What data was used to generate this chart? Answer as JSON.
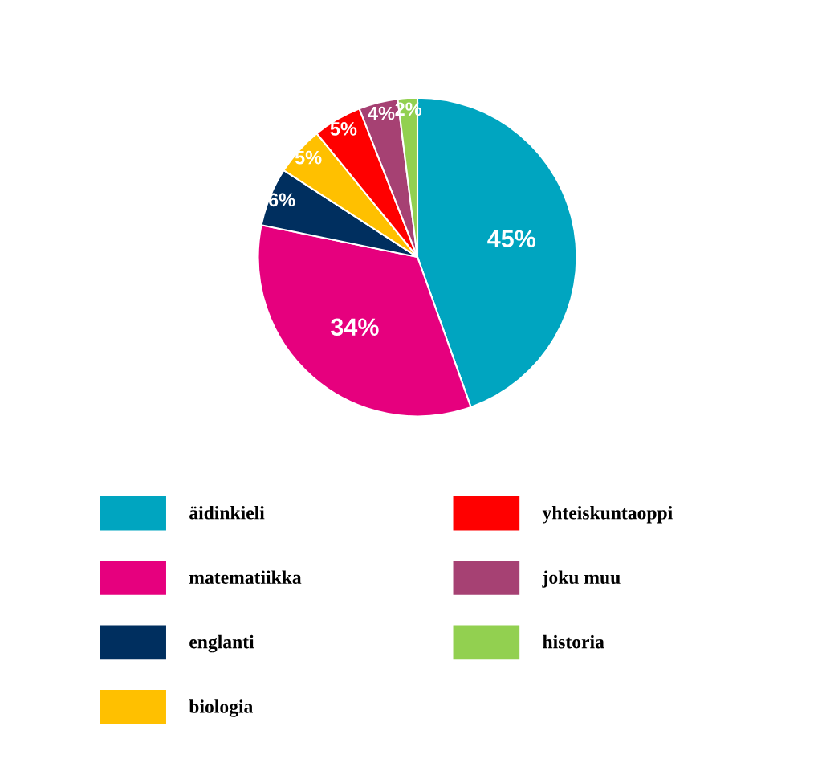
{
  "chart_data": {
    "type": "pie",
    "categories": [
      "äidinkieli",
      "matematiikka",
      "englanti",
      "biologia",
      "yhteiskuntaoppi",
      "joku muu",
      "historia"
    ],
    "values": [
      45,
      34,
      6,
      5,
      5,
      4,
      2
    ],
    "colors": [
      "#00a5c0",
      "#e6007e",
      "#002f5f",
      "#ffc000",
      "#ff0000",
      "#a64173",
      "#92d050"
    ],
    "value_labels": [
      "45%",
      "34%",
      "6%",
      "5%",
      "5%",
      "4%",
      "2%"
    ],
    "legend": "bottom"
  }
}
